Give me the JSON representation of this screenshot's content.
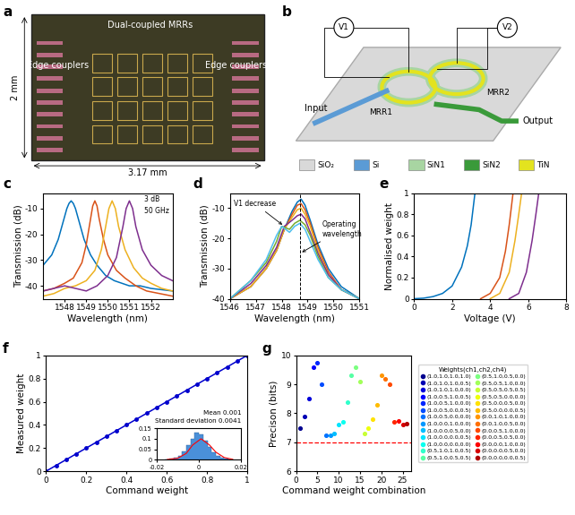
{
  "panel_labels": [
    "a",
    "b",
    "c",
    "d",
    "e",
    "f",
    "g"
  ],
  "a": {
    "type": "photo",
    "labels": [
      "Dual-coupled MRRs",
      "Edge couplers",
      "Edge couplers"
    ],
    "height_label": "2 mm",
    "width_label": "3.17 mm"
  },
  "b": {
    "type": "diagram",
    "labels": {
      "v1": "V1",
      "v2": "V2",
      "input": "Input",
      "output": "Output",
      "mrr1": "MRR1",
      "mrr2": "MRR2"
    },
    "materials": [
      {
        "name": "SiO₂",
        "color": "#d9d9d9"
      },
      {
        "name": "Si",
        "color": "#5b9bd5"
      },
      {
        "name": "SiN1",
        "color": "#a8d5a2"
      },
      {
        "name": "SiN2",
        "color": "#3a9a3a"
      },
      {
        "name": "TiN",
        "color": "#e3e31f"
      }
    ]
  },
  "chart_data": [
    {
      "type": "line",
      "xlabel": "Wavelength (nm)",
      "ylabel": "Transmission (dB)",
      "xlim": [
        1547,
        1553
      ],
      "ylim": [
        -45,
        -4
      ],
      "xticks": [
        1548,
        1549,
        1550,
        1551,
        1552
      ],
      "yticks": [
        -40,
        -30,
        -20,
        -10
      ],
      "annotations": [
        "3 dB",
        "50 GHz"
      ],
      "series": [
        {
          "color": "#0072BD",
          "x": [
            1547,
            1547.4,
            1547.7,
            1547.9,
            1548.1,
            1548.2,
            1548.3,
            1548.4,
            1548.5,
            1548.7,
            1548.9,
            1549.2,
            1549.5,
            1549.9,
            1550.3,
            1551,
            1551.5,
            1552,
            1553
          ],
          "values": [
            -32,
            -28,
            -22,
            -16,
            -10,
            -8,
            -7,
            -8,
            -10,
            -16,
            -22,
            -28,
            -32,
            -36,
            -38,
            -40,
            -40,
            -41,
            -42
          ]
        },
        {
          "color": "#D95319",
          "x": [
            1547,
            1547.5,
            1548,
            1548.4,
            1548.8,
            1549.0,
            1549.2,
            1549.3,
            1549.4,
            1549.5,
            1549.6,
            1549.8,
            1550.0,
            1550.4,
            1550.8,
            1551.3,
            1551.8,
            1552.4,
            1553
          ],
          "values": [
            -42,
            -41,
            -39,
            -37,
            -31,
            -24,
            -14,
            -9,
            -7,
            -9,
            -14,
            -22,
            -28,
            -34,
            -37,
            -40,
            -42,
            -43,
            -44
          ]
        },
        {
          "color": "#EDB120",
          "x": [
            1547,
            1547.5,
            1548,
            1548.5,
            1549,
            1549.4,
            1549.7,
            1549.9,
            1550.05,
            1550.2,
            1550.35,
            1550.5,
            1550.8,
            1551.2,
            1551.6,
            1552,
            1552.5,
            1553
          ],
          "values": [
            -44,
            -43,
            -41,
            -40,
            -38,
            -34,
            -26,
            -17,
            -10,
            -7,
            -10,
            -17,
            -26,
            -33,
            -37,
            -39,
            -41,
            -42
          ]
        },
        {
          "color": "#7E2F8E",
          "x": [
            1547,
            1547.5,
            1548,
            1548.5,
            1549,
            1549.5,
            1550,
            1550.4,
            1550.7,
            1550.85,
            1551.0,
            1551.15,
            1551.3,
            1551.6,
            1552,
            1552.5,
            1553
          ],
          "values": [
            -42,
            -41,
            -40,
            -41,
            -42,
            -40,
            -36,
            -29,
            -17,
            -10,
            -7,
            -10,
            -17,
            -26,
            -32,
            -36,
            -38
          ]
        }
      ]
    },
    {
      "type": "line",
      "xlabel": "Wavelength (nm)",
      "ylabel": "Transmission (dB)",
      "xlim": [
        1546,
        1551
      ],
      "ylim": [
        -40,
        -5
      ],
      "xticks": [
        1546,
        1547,
        1548,
        1549,
        1550,
        1551
      ],
      "yticks": [
        -40,
        -30,
        -20,
        -10
      ],
      "annotations": [
        "V1 decrease",
        "Operating\nwavelength"
      ],
      "operating_wavelength": 1548.7,
      "series": [
        {
          "color": "#0072BD",
          "x": [
            1546,
            1546.8,
            1547.4,
            1547.8,
            1548.1,
            1548.4,
            1548.6,
            1548.75,
            1548.9,
            1549.1,
            1549.4,
            1549.8,
            1550.3,
            1551
          ],
          "values": [
            -40,
            -36,
            -30,
            -24,
            -17,
            -11,
            -8,
            -7,
            -9,
            -14,
            -22,
            -30,
            -36,
            -40
          ]
        },
        {
          "color": "#D95319",
          "x": [
            1546,
            1546.8,
            1547.4,
            1547.8,
            1548.1,
            1548.4,
            1548.6,
            1548.75,
            1548.9,
            1549.1,
            1549.4,
            1549.8,
            1550.3,
            1551
          ],
          "values": [
            -40,
            -36,
            -30,
            -24,
            -17,
            -12,
            -9,
            -8.5,
            -10.5,
            -15,
            -23,
            -31,
            -37,
            -40
          ]
        },
        {
          "color": "#EDB120",
          "x": [
            1546,
            1546.8,
            1547.4,
            1547.8,
            1548.1,
            1548.4,
            1548.6,
            1548.75,
            1548.9,
            1549.1,
            1549.4,
            1549.8,
            1550.3,
            1551
          ],
          "values": [
            -40,
            -36,
            -30,
            -24,
            -17,
            -13,
            -10.5,
            -10,
            -12,
            -16,
            -24,
            -32,
            -37,
            -40
          ]
        },
        {
          "color": "#7E2F8E",
          "x": [
            1546,
            1546.8,
            1547.4,
            1547.8,
            1548.1,
            1548.4,
            1548.6,
            1548.75,
            1548.9,
            1549.1,
            1549.4,
            1549.8,
            1550.3,
            1551
          ],
          "values": [
            -40,
            -35,
            -29,
            -23,
            -16,
            -14,
            -12.5,
            -12,
            -13.5,
            -18,
            -25,
            -32,
            -37,
            -40
          ]
        },
        {
          "color": "#77AC30",
          "x": [
            1546,
            1546.8,
            1547.4,
            1547.8,
            1548.0,
            1548.3,
            1548.5,
            1548.7,
            1548.9,
            1549.1,
            1549.4,
            1549.8,
            1550.3,
            1551
          ],
          "values": [
            -40,
            -34,
            -28,
            -21,
            -16,
            -17,
            -15,
            -14,
            -15.5,
            -19,
            -26,
            -33,
            -37,
            -40
          ]
        },
        {
          "color": "#4DBEEE",
          "x": [
            1546,
            1546.8,
            1547.4,
            1547.8,
            1548.0,
            1548.3,
            1548.5,
            1548.7,
            1548.9,
            1549.1,
            1549.4,
            1549.8,
            1550.3,
            1551
          ],
          "values": [
            -40,
            -34,
            -27,
            -19,
            -16,
            -18,
            -16,
            -15,
            -17,
            -21,
            -27,
            -33,
            -37,
            -40
          ]
        }
      ]
    },
    {
      "type": "line",
      "xlabel": "Voltage (V)",
      "ylabel": "Normalised weight",
      "xlim": [
        0,
        8
      ],
      "ylim": [
        0,
        1
      ],
      "xticks": [
        0,
        2,
        4,
        6,
        8
      ],
      "yticks": [
        0,
        0.2,
        0.4,
        0.6,
        0.8,
        1
      ],
      "series": [
        {
          "color": "#0072BD",
          "x": [
            0,
            0.5,
            1,
            1.5,
            2,
            2.5,
            2.8,
            3.0,
            3.2
          ],
          "values": [
            0,
            0.005,
            0.02,
            0.05,
            0.12,
            0.3,
            0.5,
            0.7,
            1
          ]
        },
        {
          "color": "#D95319",
          "x": [
            3.5,
            4,
            4.5,
            4.8,
            5,
            5.2
          ],
          "values": [
            0,
            0.05,
            0.2,
            0.45,
            0.7,
            1
          ]
        },
        {
          "color": "#EDB120",
          "x": [
            4.0,
            4.5,
            5.0,
            5.3,
            5.5,
            5.65
          ],
          "values": [
            0,
            0.05,
            0.25,
            0.55,
            0.8,
            1
          ]
        },
        {
          "color": "#7E2F8E",
          "x": [
            5.0,
            5.5,
            5.9,
            6.2,
            6.4,
            6.55
          ],
          "values": [
            0,
            0.05,
            0.25,
            0.55,
            0.8,
            1
          ]
        }
      ]
    },
    {
      "type": "line",
      "xlabel": "Command weight",
      "ylabel": "Measured weight",
      "xlim": [
        0,
        1
      ],
      "ylim": [
        0,
        1
      ],
      "xticks": [
        0,
        0.2,
        0.4,
        0.6,
        0.8,
        1
      ],
      "yticks": [
        0,
        0.2,
        0.4,
        0.6,
        0.8,
        1
      ],
      "series": [
        {
          "color": "#0000cd",
          "marker": "circle",
          "x": [
            0,
            0.05,
            0.1,
            0.15,
            0.2,
            0.25,
            0.3,
            0.35,
            0.4,
            0.45,
            0.5,
            0.55,
            0.6,
            0.65,
            0.7,
            0.75,
            0.8,
            0.85,
            0.9,
            0.95,
            1
          ],
          "values": [
            0,
            0.05,
            0.1,
            0.15,
            0.2,
            0.25,
            0.3,
            0.35,
            0.4,
            0.45,
            0.5,
            0.55,
            0.6,
            0.65,
            0.7,
            0.75,
            0.8,
            0.85,
            0.9,
            0.95,
            1
          ]
        }
      ],
      "inset": {
        "type": "histogram",
        "color": "#4a90d9",
        "bins": [
          -0.016,
          -0.014,
          -0.012,
          -0.01,
          -0.008,
          -0.006,
          -0.004,
          -0.002,
          0,
          0.002,
          0.004,
          0.006,
          0.008,
          0.01,
          0.012,
          0.014,
          0.016
        ],
        "counts": [
          0.002,
          0.004,
          0.01,
          0.02,
          0.04,
          0.07,
          0.1,
          0.13,
          0.12,
          0.09,
          0.06,
          0.035,
          0.02,
          0.01,
          0.004,
          0.002
        ],
        "fit": {
          "color": "#ff0000",
          "x": [
            -0.015,
            -0.01,
            -0.006,
            -0.003,
            0.001,
            0.005,
            0.008,
            0.012,
            0.016
          ],
          "values": [
            0.0005,
            0.007,
            0.03,
            0.07,
            0.1,
            0.07,
            0.036,
            0.01,
            0.0015
          ]
        },
        "xlim": [
          -0.02,
          0.02
        ],
        "ylim": [
          0,
          0.15
        ],
        "xticks": [
          -0.02,
          0,
          0.02
        ],
        "yticks": [
          0,
          0.05,
          0.1,
          0.15
        ],
        "annotations": [
          "Mean 0.001",
          "Standard deviation 0.0041"
        ]
      }
    },
    {
      "type": "scatter",
      "xlabel": "Command weight combination",
      "ylabel": "Precison (bits)",
      "xlim": [
        0,
        27
      ],
      "ylim": [
        6,
        10
      ],
      "xticks": [
        0,
        5,
        10,
        15,
        20,
        25
      ],
      "yticks": [
        6,
        7,
        8,
        9,
        10
      ],
      "marker": "circle",
      "reference_line": 7,
      "legend": "center left",
      "legend_title": "Weights(ch1,ch2,ch4)",
      "x": [
        1,
        2,
        3,
        4,
        5,
        6,
        7,
        8,
        9,
        10,
        11,
        12,
        13,
        14,
        15,
        16,
        17,
        18,
        19,
        20,
        21,
        22,
        23,
        24,
        25,
        26
      ],
      "values": [
        7.5,
        7.9,
        8.5,
        9.6,
        9.75,
        9.0,
        7.25,
        7.25,
        7.3,
        7.6,
        7.7,
        8.4,
        9.3,
        9.6,
        9.1,
        7.3,
        7.5,
        7.8,
        8.3,
        9.3,
        9.2,
        9.0,
        7.7,
        7.75,
        7.6,
        7.65
      ],
      "colors": [
        "#00008f",
        "#0000b4",
        "#0000da",
        "#0000ff",
        "#0026ff",
        "#004cff",
        "#0072ff",
        "#0098ff",
        "#00beff",
        "#00e4ff",
        "#0affef",
        "#30ffcb",
        "#56ffa5",
        "#7cff80",
        "#a2ff5a",
        "#c8ff34",
        "#eeff0e",
        "#ffe200",
        "#ffbc00",
        "#ff9600",
        "#ff7000",
        "#ff4a00",
        "#ff2400",
        "#fd0000",
        "#d60000",
        "#b00000"
      ],
      "categories": [
        "(1.0,1.0,1.0,1.0)",
        "(1.0,1.0,1.0,0.5)",
        "(1.0,1.0,1.0,0.0)",
        "(1.0,0.5,1.0,0.5)",
        "(1.0,0.5,1.0,0.0)",
        "(1.0,0.5,0.0,0.5)",
        "(1.0,0.5,0.0,0.0)",
        "(1.0,0.0,1.0,0.0)",
        "(1.0,0.0,0.5,0.0)",
        "(1.0,0.0,0.0,0.5)",
        "(1.0,0.0,0.0,0.0)",
        "(0.5,1.0,1.0,0.5)",
        "(0.5,1.0,0.5,0.5)",
        "(0.5,1.0,0.5,0.0)",
        "(0.5,0.5,1.0,0.0)",
        "(0.5,0.5,0.5,0.5)",
        "(0.5,0.5,0.0,0.0)",
        "(0.5,0.0,0.5,0.0)",
        "(0.5,0.0,0.0,0.5)",
        "(0.0,1.0,1.0,0.0)",
        "(0.0,1.0,0.5,0.0)",
        "(0.0,0.5,1.0,0.0)",
        "(0.0,0.5,0.5,0.0)",
        "(0.0,0.0,1.0,0.0)",
        "(0.0,0.0,0.5,0.0)",
        "(0.0,0.0,0.0,0.5)"
      ]
    }
  ]
}
